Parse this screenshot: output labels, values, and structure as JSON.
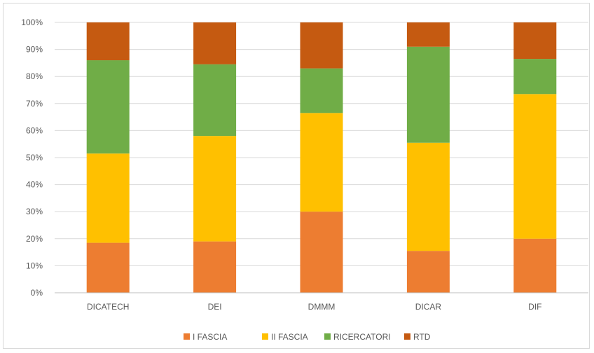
{
  "chart_data": {
    "type": "bar",
    "stacked": "percent",
    "title": "",
    "xlabel": "",
    "ylabel": "",
    "categories": [
      "DICATECH",
      "DEI",
      "DMMM",
      "DICAR",
      "DIF"
    ],
    "series": [
      {
        "name": "I FASCIA",
        "color": "#ed7d31",
        "values": [
          18.5,
          19,
          30,
          15.5,
          20
        ]
      },
      {
        "name": "II FASCIA",
        "color": "#ffc000",
        "values": [
          33,
          39,
          36.5,
          40,
          53.5
        ]
      },
      {
        "name": "RICERCATORI",
        "color": "#70ad47",
        "values": [
          34.5,
          26.5,
          16.5,
          35.5,
          13
        ]
      },
      {
        "name": "RTD",
        "color": "#c55a11",
        "values": [
          14,
          15.5,
          17,
          9,
          13.5
        ]
      }
    ],
    "ylim": [
      0,
      100
    ],
    "yticks": [
      "0%",
      "10%",
      "20%",
      "30%",
      "40%",
      "50%",
      "60%",
      "70%",
      "80%",
      "90%",
      "100%"
    ],
    "grid": true,
    "legend_position": "bottom"
  }
}
